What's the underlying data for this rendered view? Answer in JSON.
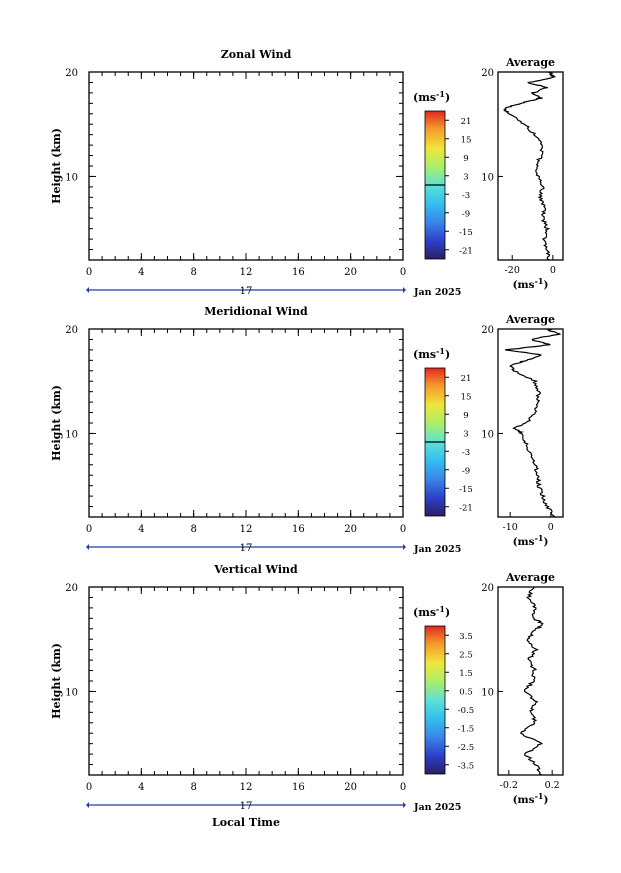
{
  "chart_data": [
    {
      "type": "heatmap",
      "title": "Zonal Wind",
      "ylabel": "Height (km)",
      "xlabel": "",
      "x_ticks": [
        "0",
        "4",
        "8",
        "12",
        "16",
        "20",
        "0"
      ],
      "y_ticks": [
        "20",
        "10"
      ],
      "xlim": [
        0,
        24
      ],
      "ylim": [
        2,
        20
      ],
      "date_marker": "17",
      "date_label": "Jan 2025",
      "colorbar": {
        "unit": "(ms",
        "unit_sup": "-1",
        "unit_close": ")",
        "ticks": [
          "21",
          "15",
          "9",
          "3",
          "-3",
          "-9",
          "-15",
          "-21"
        ],
        "range": [
          -24,
          24
        ],
        "zero_line": true
      },
      "average": {
        "title": "Average",
        "x_ticks": [
          "-20",
          "0"
        ],
        "xlim": [
          -27,
          5
        ],
        "y_ticks": [
          "20",
          "10"
        ],
        "unit": "(ms",
        "unit_sup": "-1",
        "unit_close": ")",
        "profile": [
          [
            2,
            -2
          ],
          [
            3,
            -3
          ],
          [
            4,
            -4
          ],
          [
            5,
            -3
          ],
          [
            6,
            -5
          ],
          [
            7,
            -4
          ],
          [
            8,
            -6
          ],
          [
            9,
            -5
          ],
          [
            10,
            -7
          ],
          [
            11,
            -8
          ],
          [
            12,
            -6
          ],
          [
            13,
            -5
          ],
          [
            14,
            -9
          ],
          [
            15,
            -14
          ],
          [
            16,
            -21
          ],
          [
            16.5,
            -24
          ],
          [
            17,
            -16
          ],
          [
            17.5,
            -6
          ],
          [
            18,
            -10
          ],
          [
            18.5,
            -3
          ],
          [
            19,
            -12
          ],
          [
            19.5,
            1
          ],
          [
            20,
            -2
          ]
        ]
      }
    },
    {
      "type": "heatmap",
      "title": "Meridional Wind",
      "ylabel": "Height (km)",
      "xlabel": "",
      "x_ticks": [
        "0",
        "4",
        "8",
        "12",
        "16",
        "20",
        "0"
      ],
      "y_ticks": [
        "20",
        "10"
      ],
      "xlim": [
        0,
        24
      ],
      "ylim": [
        2,
        20
      ],
      "date_marker": "17",
      "date_label": "Jan 2025",
      "colorbar": {
        "unit": "(ms",
        "unit_sup": "-1",
        "unit_close": ")",
        "ticks": [
          "21",
          "15",
          "9",
          "3",
          "-3",
          "-9",
          "-15",
          "-21"
        ],
        "range": [
          -24,
          24
        ],
        "zero_line": true
      },
      "average": {
        "title": "Average",
        "x_ticks": [
          "-10",
          "0"
        ],
        "xlim": [
          -13,
          3
        ],
        "y_ticks": [
          "20",
          "10"
        ],
        "unit": "(ms",
        "unit_sup": "-1",
        "unit_close": ")",
        "profile": [
          [
            2,
            1
          ],
          [
            3,
            -1
          ],
          [
            4,
            -2
          ],
          [
            5,
            -3
          ],
          [
            6,
            -3
          ],
          [
            7,
            -4
          ],
          [
            8,
            -5
          ],
          [
            9,
            -6
          ],
          [
            10,
            -7
          ],
          [
            10.5,
            -9
          ],
          [
            11,
            -6
          ],
          [
            12,
            -4
          ],
          [
            13,
            -3
          ],
          [
            14,
            -3
          ],
          [
            15,
            -4
          ],
          [
            16,
            -9
          ],
          [
            16.5,
            -10
          ],
          [
            17,
            -6
          ],
          [
            17.5,
            -2
          ],
          [
            18,
            -11
          ],
          [
            18.5,
            0
          ],
          [
            19,
            -5
          ],
          [
            19.5,
            2
          ],
          [
            20,
            -1
          ]
        ]
      }
    },
    {
      "type": "heatmap",
      "title": "Vertical Wind",
      "ylabel": "Height (km)",
      "xlabel": "Local Time",
      "x_ticks": [
        "0",
        "4",
        "8",
        "12",
        "16",
        "20",
        "0"
      ],
      "y_ticks": [
        "20",
        "10"
      ],
      "xlim": [
        0,
        24
      ],
      "ylim": [
        2,
        20
      ],
      "date_marker": "17",
      "date_label": "Jan 2025",
      "colorbar": {
        "unit": "(ms",
        "unit_sup": "-1",
        "unit_close": ")",
        "ticks": [
          "3.5",
          "2.5",
          "1.5",
          "0.5",
          "-0.5",
          "-1.5",
          "-2.5",
          "-3.5"
        ],
        "range": [
          -4,
          4
        ],
        "zero_line": false
      },
      "average": {
        "title": "Average",
        "x_ticks": [
          "-0.2",
          "0.2"
        ],
        "xlim": [
          -0.3,
          0.3
        ],
        "y_ticks": [
          "20",
          "10"
        ],
        "unit": "(ms",
        "unit_sup": "-1",
        "unit_close": ")",
        "profile": [
          [
            2,
            0.1
          ],
          [
            3,
            0.05
          ],
          [
            4,
            -0.05
          ],
          [
            5,
            0.1
          ],
          [
            6,
            -0.1
          ],
          [
            7,
            0.05
          ],
          [
            8,
            0.0
          ],
          [
            9,
            0.05
          ],
          [
            10,
            -0.05
          ],
          [
            11,
            0.02
          ],
          [
            12,
            0.04
          ],
          [
            13,
            -0.02
          ],
          [
            14,
            0.05
          ],
          [
            15,
            -0.03
          ],
          [
            16,
            0.06
          ],
          [
            16.5,
            0.12
          ],
          [
            17,
            0.02
          ],
          [
            18,
            0.05
          ],
          [
            19,
            -0.02
          ],
          [
            20,
            0.03
          ]
        ]
      }
    }
  ]
}
